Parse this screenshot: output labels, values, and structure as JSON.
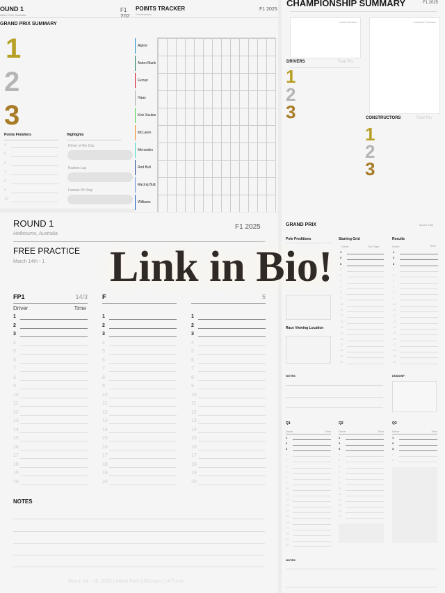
{
  "summary_page": {
    "title": "OUND 1",
    "subtitle": "Albert Park, Australia",
    "brand": "F1 202",
    "heading": "GRAND PRIX SUMMARY",
    "podium": [
      "1",
      "2",
      "3"
    ],
    "points_finishers": "Points Finishers",
    "finisher_numbers": [
      "4",
      "5",
      "6",
      "7",
      "8",
      "9",
      "10"
    ],
    "highlights": "Highlights",
    "highlight_items": [
      "Driver of the Day",
      "Fastest Lap",
      "Fastest Pit Stop"
    ]
  },
  "tracker_page": {
    "title": "POINTS TRACKER",
    "subtitle": "Constructors",
    "brand": "F1 2025",
    "teams": [
      {
        "name": "Alpine",
        "color": "#1e8fd0"
      },
      {
        "name": "Aston Martin",
        "color": "#1e7a5e"
      },
      {
        "name": "Ferrari",
        "color": "#d0102a"
      },
      {
        "name": "Haas",
        "color": "#aaaaaa"
      },
      {
        "name": "Kick Sauber",
        "color": "#4ccf4c"
      },
      {
        "name": "McLaren",
        "color": "#f08a24"
      },
      {
        "name": "Mercedes",
        "color": "#45d9c4"
      },
      {
        "name": "Red Bull",
        "color": "#274a9a"
      },
      {
        "name": "Racing Bulls",
        "color": "#6a8ee0"
      },
      {
        "name": "Williams",
        "color": "#1a5bc8"
      }
    ]
  },
  "championship_page": {
    "title": "CHAMPIONSHIP SUMMARY",
    "brand": "F1 2025",
    "drivers_box": "Driver's Champion",
    "constructors_box": "Constructor's Champion",
    "drivers": "DRIVERS",
    "constructors": "CONSTRUCTORS",
    "total_pts": "Total Pts",
    "podium": [
      "1",
      "2",
      "3"
    ]
  },
  "practice_page": {
    "title": "ROUND 1",
    "subtitle": "Melbourne, Australia",
    "brand": "F1 2025",
    "heading": "FREE PRACTICE",
    "dates": "March 14th - 1",
    "sessions": [
      {
        "name": "FP1",
        "date": "14/3"
      },
      {
        "name": "F",
        "date": ""
      },
      {
        "name": "",
        "date": "5"
      }
    ],
    "driver": "Driver",
    "time": "Time",
    "rows": [
      "1",
      "2",
      "3",
      "4",
      "5",
      "6",
      "7",
      "8",
      "9",
      "10",
      "11",
      "12",
      "13",
      "14",
      "15",
      "16",
      "17",
      "18",
      "19",
      "20"
    ],
    "notes": "NOTES",
    "footer": "March 14 - 16, 2025  |  Albert Park  |  58 Laps  |  14 Turns"
  },
  "gp_page": {
    "title": "GRAND PRIX",
    "date": "March 16th",
    "pole": "Pole Preditions",
    "grid": "Starting Grid",
    "grid_cols": [
      "Driver",
      "Tire Type"
    ],
    "results": "Results",
    "results_cols": [
      "Driver",
      "Time"
    ],
    "viewing": "Race Viewing Location",
    "notes": "NOTES",
    "dns": "DNS/DNF",
    "quali": [
      {
        "name": "Q1"
      },
      {
        "name": "Q2"
      },
      {
        "name": "Q3"
      }
    ],
    "driver": "Driver",
    "time": "Time",
    "notes2": "NOTES"
  },
  "overlay": {
    "text": "Link in Bio!"
  }
}
